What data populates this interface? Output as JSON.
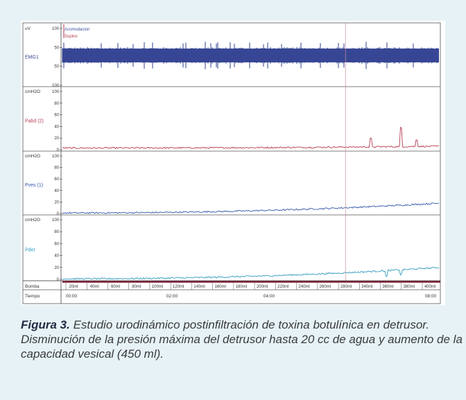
{
  "caption": {
    "label": "Figura 3.",
    "text": " Estudio urodinámico postinfiltración de toxina botulínica en detrusor. Disminución de la presión máxima del detrusor hasta 20 cc de agua y aumento de la capacidad vesical (450 ml)."
  },
  "chart_data": {
    "type": "line",
    "panels": [
      {
        "name": "EMG1",
        "unit": "uV",
        "tick_labels": [
          "100",
          "50",
          "50",
          "100"
        ],
        "annotations": [
          "Acomodacion",
          "Supino"
        ],
        "ylim": [
          -100,
          100
        ],
        "color": "#2f3f8f",
        "level": 0
      },
      {
        "name": "Pabd (2)",
        "unit": "cmH2O",
        "tick_labels": [
          "100",
          "80",
          "60",
          "40",
          "20",
          "0"
        ],
        "ylim": [
          0,
          100
        ],
        "color": "#b53a50",
        "trace": {
          "start": 3,
          "end": 6,
          "spikes": [
            [
              0.82,
              14
            ],
            [
              0.9,
              32
            ],
            [
              0.94,
              12
            ]
          ]
        }
      },
      {
        "name": "Pves (1)",
        "unit": "cmH2O",
        "tick_labels": [
          "100",
          "80",
          "60",
          "40",
          "20",
          "0"
        ],
        "ylim": [
          0,
          100
        ],
        "color": "#2f55a8",
        "trace": {
          "start": 1,
          "end": 18,
          "spikes": []
        }
      },
      {
        "name": "Pdet",
        "unit": "cmH2O",
        "tick_labels": [
          "100",
          "80",
          "60",
          "40",
          "20",
          "0"
        ],
        "ylim": [
          0,
          100
        ],
        "color": "#2f9ac0",
        "trace": {
          "start": 1,
          "end": 20,
          "spikes": [
            [
              0.86,
              -10
            ],
            [
              0.9,
              -8
            ]
          ]
        }
      }
    ],
    "bomba_label": "Bomba",
    "tiempo_label": "Tiempo",
    "volume_labels": [
      "20ml",
      "40ml",
      "60ml",
      "80ml",
      "100ml",
      "120ml",
      "140ml",
      "160ml",
      "180ml",
      "200ml",
      "220ml",
      "240ml",
      "260ml",
      "280ml",
      "340ml",
      "360ml",
      "380ml",
      "400ml"
    ],
    "time_labels": [
      "00:00",
      "02:00",
      "04:00",
      "08:00"
    ],
    "event_marker_fraction": 0.75
  }
}
